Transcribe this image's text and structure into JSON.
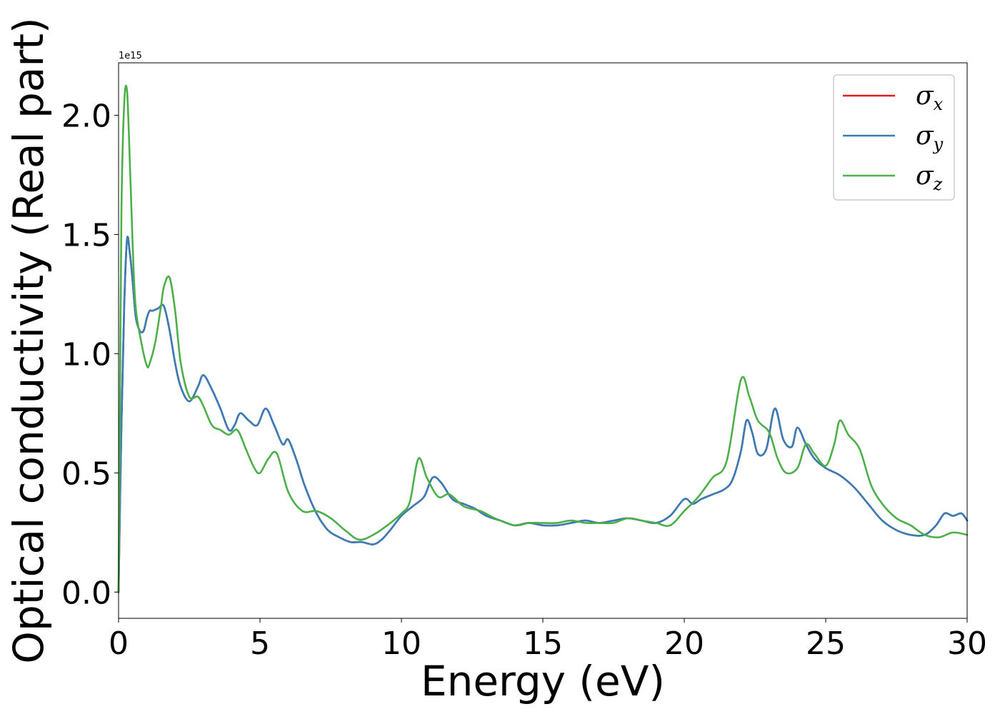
{
  "chart_data": {
    "type": "line",
    "title": "",
    "xlabel": "Energy (eV)",
    "ylabel": "Optical conductivity (Real part)",
    "y_offset_text": "1e15",
    "y_multiplier": 1000000000000000.0,
    "xlim": [
      0,
      30
    ],
    "ylim": [
      -0.11,
      2.22
    ],
    "xticks": [
      0,
      5,
      10,
      15,
      20,
      25,
      30
    ],
    "xtick_labels": [
      "0",
      "5",
      "10",
      "15",
      "20",
      "25",
      "30"
    ],
    "yticks": [
      0.0,
      0.5,
      1.0,
      1.5,
      2.0
    ],
    "ytick_labels": [
      "0.0",
      "0.5",
      "1.0",
      "1.5",
      "2.0"
    ],
    "grid": false,
    "legend_position": "top-right",
    "legend": [
      {
        "symbol": "σ",
        "subscript": "x",
        "color": "#e41a1c"
      },
      {
        "symbol": "σ",
        "subscript": "y",
        "color": "#377eb8"
      },
      {
        "symbol": "σ",
        "subscript": "z",
        "color": "#4daf4a"
      }
    ],
    "series": [
      {
        "color": "#e41a1c",
        "x": [
          0,
          0.1,
          0.2,
          0.3,
          0.4,
          0.5,
          0.6,
          0.7,
          0.8,
          0.9,
          1.0,
          1.1,
          1.2,
          1.4,
          1.6,
          1.8,
          2.0,
          2.2,
          2.5,
          2.8,
          3.0,
          3.3,
          3.6,
          3.9,
          4.1,
          4.3,
          4.6,
          4.9,
          5.2,
          5.5,
          5.8,
          6.0,
          6.3,
          6.6,
          7.0,
          7.4,
          7.8,
          8.2,
          8.6,
          9.0,
          9.3,
          9.6,
          10.0,
          10.4,
          10.8,
          11.1,
          11.4,
          11.8,
          12.2,
          12.6,
          13.0,
          13.5,
          14.0,
          14.5,
          15.0,
          15.5,
          16.0,
          16.5,
          17.0,
          17.5,
          18.0,
          18.5,
          19.0,
          19.5,
          20.0,
          20.3,
          20.6,
          21.0,
          21.4,
          21.7,
          22.0,
          22.2,
          22.4,
          22.6,
          22.9,
          23.2,
          23.5,
          23.8,
          24.0,
          24.3,
          24.6,
          25.0,
          25.5,
          26.0,
          26.5,
          27.0,
          27.5,
          28.0,
          28.5,
          28.9,
          29.2,
          29.5,
          29.8,
          30.0
        ],
        "y": [
          0.0,
          0.7,
          1.2,
          1.48,
          1.42,
          1.3,
          1.16,
          1.11,
          1.09,
          1.1,
          1.15,
          1.18,
          1.18,
          1.19,
          1.2,
          1.1,
          0.96,
          0.86,
          0.8,
          0.86,
          0.91,
          0.85,
          0.77,
          0.68,
          0.7,
          0.75,
          0.72,
          0.7,
          0.77,
          0.7,
          0.62,
          0.64,
          0.55,
          0.44,
          0.33,
          0.26,
          0.23,
          0.21,
          0.21,
          0.2,
          0.22,
          0.26,
          0.32,
          0.36,
          0.4,
          0.48,
          0.46,
          0.39,
          0.37,
          0.35,
          0.32,
          0.3,
          0.28,
          0.29,
          0.28,
          0.28,
          0.29,
          0.3,
          0.29,
          0.3,
          0.31,
          0.3,
          0.29,
          0.32,
          0.39,
          0.37,
          0.39,
          0.41,
          0.43,
          0.47,
          0.59,
          0.72,
          0.67,
          0.58,
          0.6,
          0.77,
          0.64,
          0.61,
          0.69,
          0.62,
          0.56,
          0.52,
          0.49,
          0.44,
          0.37,
          0.3,
          0.26,
          0.24,
          0.24,
          0.28,
          0.33,
          0.32,
          0.33,
          0.3
        ]
      },
      {
        "color": "#377eb8",
        "x": [
          0,
          0.1,
          0.2,
          0.3,
          0.4,
          0.5,
          0.6,
          0.7,
          0.8,
          0.9,
          1.0,
          1.1,
          1.2,
          1.4,
          1.6,
          1.8,
          2.0,
          2.2,
          2.5,
          2.8,
          3.0,
          3.3,
          3.6,
          3.9,
          4.1,
          4.3,
          4.6,
          4.9,
          5.2,
          5.5,
          5.8,
          6.0,
          6.3,
          6.6,
          7.0,
          7.4,
          7.8,
          8.2,
          8.6,
          9.0,
          9.3,
          9.6,
          10.0,
          10.4,
          10.8,
          11.1,
          11.4,
          11.8,
          12.2,
          12.6,
          13.0,
          13.5,
          14.0,
          14.5,
          15.0,
          15.5,
          16.0,
          16.5,
          17.0,
          17.5,
          18.0,
          18.5,
          19.0,
          19.5,
          20.0,
          20.3,
          20.6,
          21.0,
          21.4,
          21.7,
          22.0,
          22.2,
          22.4,
          22.6,
          22.9,
          23.2,
          23.5,
          23.8,
          24.0,
          24.3,
          24.6,
          25.0,
          25.5,
          26.0,
          26.5,
          27.0,
          27.5,
          28.0,
          28.5,
          28.9,
          29.2,
          29.5,
          29.8,
          30.0
        ],
        "y": [
          0.0,
          0.7,
          1.2,
          1.48,
          1.42,
          1.3,
          1.16,
          1.11,
          1.09,
          1.1,
          1.15,
          1.18,
          1.18,
          1.19,
          1.2,
          1.1,
          0.96,
          0.86,
          0.8,
          0.86,
          0.91,
          0.85,
          0.77,
          0.68,
          0.7,
          0.75,
          0.72,
          0.7,
          0.77,
          0.7,
          0.62,
          0.64,
          0.55,
          0.44,
          0.33,
          0.26,
          0.23,
          0.21,
          0.21,
          0.2,
          0.22,
          0.26,
          0.32,
          0.36,
          0.4,
          0.48,
          0.46,
          0.39,
          0.37,
          0.35,
          0.32,
          0.3,
          0.28,
          0.29,
          0.28,
          0.28,
          0.29,
          0.3,
          0.29,
          0.3,
          0.31,
          0.3,
          0.29,
          0.32,
          0.39,
          0.37,
          0.39,
          0.41,
          0.43,
          0.47,
          0.59,
          0.72,
          0.67,
          0.58,
          0.6,
          0.77,
          0.64,
          0.61,
          0.69,
          0.62,
          0.56,
          0.52,
          0.49,
          0.44,
          0.37,
          0.3,
          0.26,
          0.24,
          0.24,
          0.28,
          0.33,
          0.32,
          0.33,
          0.3
        ]
      },
      {
        "color": "#4daf4a",
        "x": [
          0,
          0.05,
          0.1,
          0.2,
          0.3,
          0.4,
          0.5,
          0.6,
          0.8,
          1.0,
          1.1,
          1.3,
          1.5,
          1.6,
          1.8,
          2.0,
          2.2,
          2.5,
          2.8,
          3.0,
          3.3,
          3.6,
          3.9,
          4.2,
          4.5,
          4.8,
          5.0,
          5.3,
          5.6,
          6.0,
          6.5,
          7.0,
          7.5,
          8.0,
          8.5,
          9.0,
          9.5,
          10.0,
          10.3,
          10.6,
          10.9,
          11.3,
          11.7,
          12.2,
          12.8,
          13.3,
          14.0,
          14.5,
          15.0,
          15.5,
          16.0,
          16.5,
          17.0,
          17.5,
          18.0,
          18.5,
          19.0,
          19.5,
          20.0,
          20.5,
          21.0,
          21.5,
          22.0,
          22.3,
          22.6,
          23.0,
          23.3,
          23.6,
          24.0,
          24.3,
          24.6,
          25.0,
          25.3,
          25.5,
          25.8,
          26.2,
          26.6,
          27.0,
          27.5,
          28.0,
          28.5,
          29.0,
          29.5,
          30.0
        ],
        "y": [
          0.0,
          0.8,
          1.6,
          2.05,
          2.1,
          1.8,
          1.45,
          1.2,
          1.05,
          0.95,
          0.96,
          1.05,
          1.2,
          1.28,
          1.32,
          1.18,
          0.96,
          0.82,
          0.82,
          0.78,
          0.7,
          0.68,
          0.66,
          0.68,
          0.6,
          0.52,
          0.5,
          0.56,
          0.58,
          0.42,
          0.34,
          0.34,
          0.31,
          0.26,
          0.22,
          0.24,
          0.28,
          0.33,
          0.38,
          0.56,
          0.48,
          0.4,
          0.41,
          0.36,
          0.34,
          0.31,
          0.28,
          0.29,
          0.29,
          0.29,
          0.3,
          0.29,
          0.29,
          0.29,
          0.31,
          0.3,
          0.29,
          0.28,
          0.34,
          0.4,
          0.48,
          0.55,
          0.89,
          0.82,
          0.72,
          0.67,
          0.56,
          0.5,
          0.52,
          0.62,
          0.58,
          0.53,
          0.62,
          0.72,
          0.66,
          0.6,
          0.45,
          0.37,
          0.31,
          0.28,
          0.24,
          0.23,
          0.25,
          0.24
        ]
      }
    ]
  }
}
